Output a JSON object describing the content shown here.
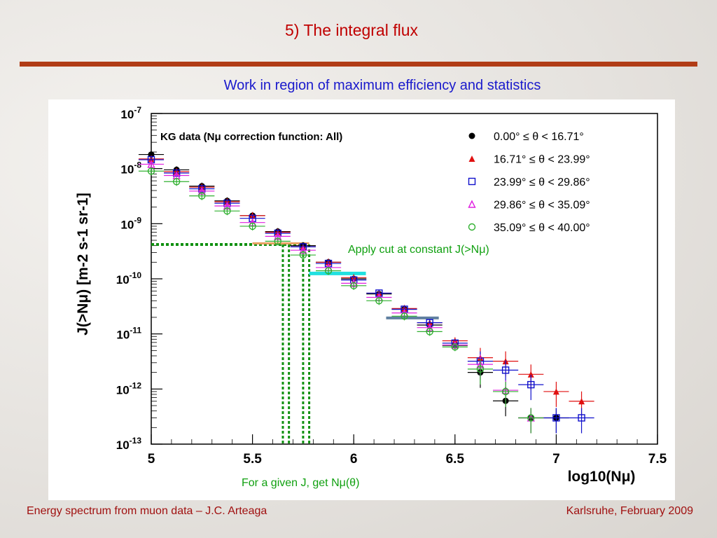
{
  "slide": {
    "title": "5) The integral flux",
    "subtitle": "Work in region of maximum efficiency and statistics",
    "footer_left": "Energy spectrum from muon data – J.C. Arteaga",
    "footer_right": "Karlsruhe,  February 2009"
  },
  "chart_data": {
    "type": "scatter",
    "title": "KG data (Nμ correction function: All)",
    "xlabel": "log10(Nμ)",
    "ylabel": "J(>Nμ) [m-2 s-1 sr-1]",
    "xlim": [
      5,
      7.5
    ],
    "ylim": [
      1e-13,
      1e-07
    ],
    "ylog": true,
    "xticks": [
      "5",
      "5.5",
      "6",
      "6.5",
      "7",
      "7.5"
    ],
    "yticks": [
      {
        "base": "10",
        "exp": "-7"
      },
      {
        "base": "10",
        "exp": "-8"
      },
      {
        "base": "10",
        "exp": "-9"
      },
      {
        "base": "10",
        "exp": "-10"
      },
      {
        "base": "10",
        "exp": "-11"
      },
      {
        "base": "10",
        "exp": "-12"
      },
      {
        "base": "10",
        "exp": "-13"
      }
    ],
    "series": [
      {
        "name": "0.00° ≤ θ < 16.71°",
        "color": "#000000",
        "marker": "circle-filled",
        "x": [
          5.0,
          5.125,
          5.25,
          5.375,
          5.5,
          5.625,
          5.75,
          5.875,
          6.0,
          6.125,
          6.25,
          6.375,
          6.5,
          6.625,
          6.75,
          6.875,
          7.0
        ],
        "y": [
          1.8e-08,
          9.5e-09,
          4.8e-09,
          2.6e-09,
          1.4e-09,
          7.2e-10,
          4e-10,
          2e-10,
          1e-10,
          5.3e-11,
          2.8e-11,
          1.45e-11,
          6.2e-12,
          2e-12,
          6.1e-13,
          3e-13,
          3e-13
        ]
      },
      {
        "name": "16.71° ≤ θ < 23.99°",
        "color": "#e01010",
        "marker": "triangle-filled",
        "x": [
          5.0,
          5.125,
          5.25,
          5.375,
          5.5,
          5.625,
          5.75,
          5.875,
          6.0,
          6.125,
          6.25,
          6.375,
          6.5,
          6.625,
          6.75,
          6.875,
          7.0,
          7.125
        ],
        "y": [
          1.5e-08,
          8.8e-09,
          4.6e-09,
          2.5e-09,
          1.4e-09,
          7e-10,
          3.8e-10,
          2e-10,
          1.05e-10,
          5.5e-11,
          2.9e-11,
          1.6e-11,
          7.5e-12,
          3.7e-12,
          3.2e-12,
          1.85e-12,
          9e-13,
          6e-13
        ]
      },
      {
        "name": "23.99° ≤ θ < 29.86°",
        "color": "#1010cc",
        "marker": "square-open",
        "x": [
          5.0,
          5.125,
          5.25,
          5.375,
          5.5,
          5.625,
          5.75,
          5.875,
          6.0,
          6.125,
          6.25,
          6.375,
          6.5,
          6.625,
          6.75,
          6.875,
          7.0,
          7.125
        ],
        "y": [
          1.45e-08,
          8.3e-09,
          4.3e-09,
          2.35e-09,
          1.25e-09,
          6.7e-10,
          3.8e-10,
          1.9e-10,
          9.5e-11,
          5.5e-11,
          2.8e-11,
          1.6e-11,
          6.8e-12,
          3.2e-12,
          2.2e-12,
          1.2e-12,
          3e-13,
          3e-13
        ]
      },
      {
        "name": "29.86° ≤ θ < 35.09°",
        "color": "#e020e0",
        "marker": "triangle-open",
        "x": [
          5.0,
          5.125,
          5.25,
          5.375,
          5.5,
          5.625,
          5.75,
          5.875,
          6.0,
          6.125,
          6.25,
          6.375,
          6.5,
          6.625,
          6.75,
          6.875
        ],
        "y": [
          1.2e-08,
          7.5e-09,
          3.9e-09,
          2.1e-09,
          1.05e-09,
          5.9e-10,
          3.3e-10,
          1.6e-10,
          8.3e-11,
          4.6e-11,
          2.4e-11,
          1.3e-11,
          6.3e-12,
          2.8e-12,
          9.5e-13,
          3e-13
        ]
      },
      {
        "name": "35.09° ≤ θ < 40.00°",
        "color": "#30b030",
        "marker": "circle-open",
        "x": [
          5.0,
          5.125,
          5.25,
          5.375,
          5.5,
          5.625,
          5.75,
          5.875,
          6.0,
          6.125,
          6.25,
          6.375,
          6.5,
          6.625,
          6.75,
          6.875
        ],
        "y": [
          9e-09,
          5.8e-09,
          3.2e-09,
          1.7e-09,
          9e-10,
          4.8e-10,
          2.7e-10,
          1.4e-10,
          7.5e-11,
          4e-11,
          2.1e-11,
          1.1e-11,
          5.8e-12,
          2.3e-12,
          9e-13,
          3e-13
        ]
      }
    ],
    "annotations": {
      "cut_label": "Apply cut at constant  J(>Nμ)",
      "given_label": "For a given  J, get Nμ(θ)",
      "cut_level": 4.2e-10,
      "cut_x_start": 5.65,
      "cut_x_end": 5.78
    }
  }
}
